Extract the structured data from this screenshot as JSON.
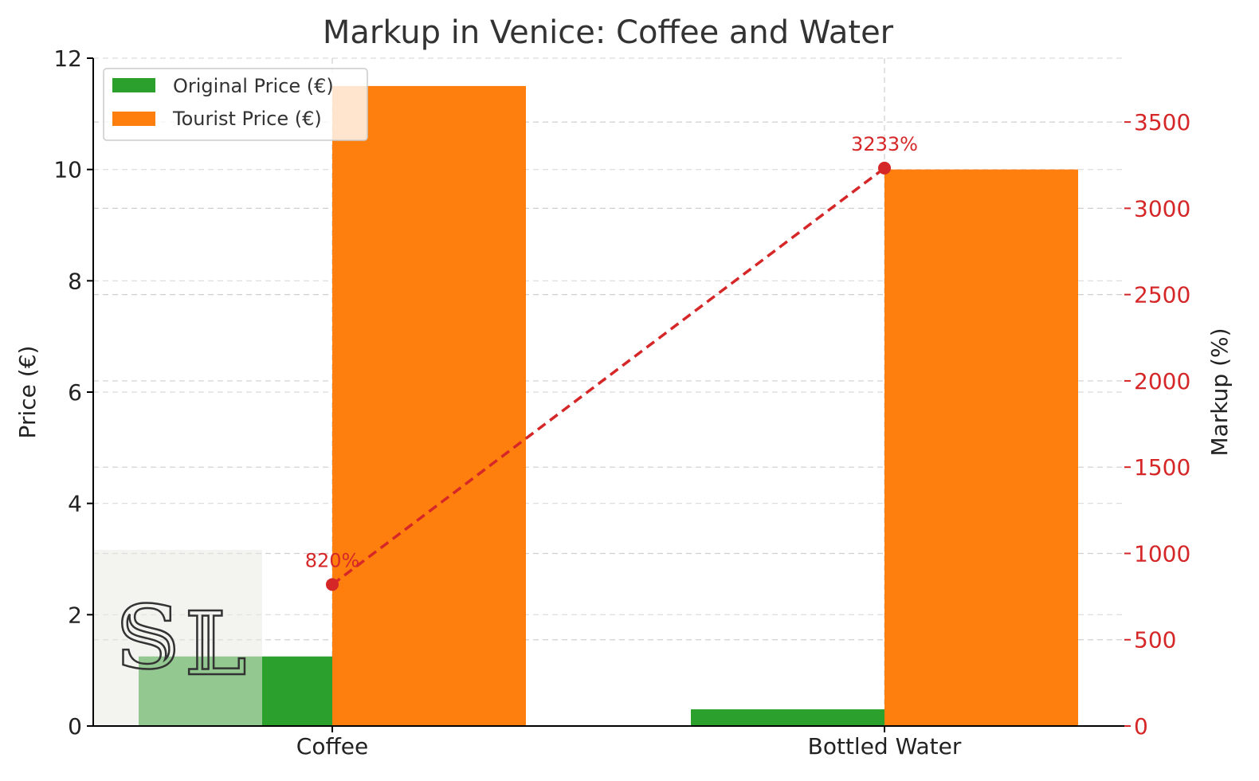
{
  "chart_data": {
    "type": "bar",
    "title": "Markup in Venice: Coffee and Water",
    "categories": [
      "Coffee",
      "Bottled Water"
    ],
    "series": [
      {
        "name": "Original Price (€)",
        "values": [
          1.25,
          0.3
        ],
        "color": "#2ca02c",
        "axis": "left"
      },
      {
        "name": "Tourist Price (€)",
        "values": [
          11.5,
          10.0
        ],
        "color": "#ff7f0e",
        "axis": "left"
      }
    ],
    "line_series": {
      "name": "Markup (%)",
      "values": [
        820,
        3233
      ],
      "labels": [
        "820%",
        "3233%"
      ],
      "color": "#d62728",
      "style": "dashed",
      "axis": "right"
    },
    "ylabel": "Price (€)",
    "ylabel_right": "Markup (%)",
    "ylim": [
      0,
      12
    ],
    "yticks": [
      "0",
      "2",
      "4",
      "6",
      "8",
      "10",
      "12"
    ],
    "ylim_right": [
      0,
      3870
    ],
    "yticks_right": [
      "0",
      "500",
      "1000",
      "1500",
      "2000",
      "2500",
      "3000",
      "3500"
    ],
    "grid": true,
    "legend_position": "upper-left"
  }
}
